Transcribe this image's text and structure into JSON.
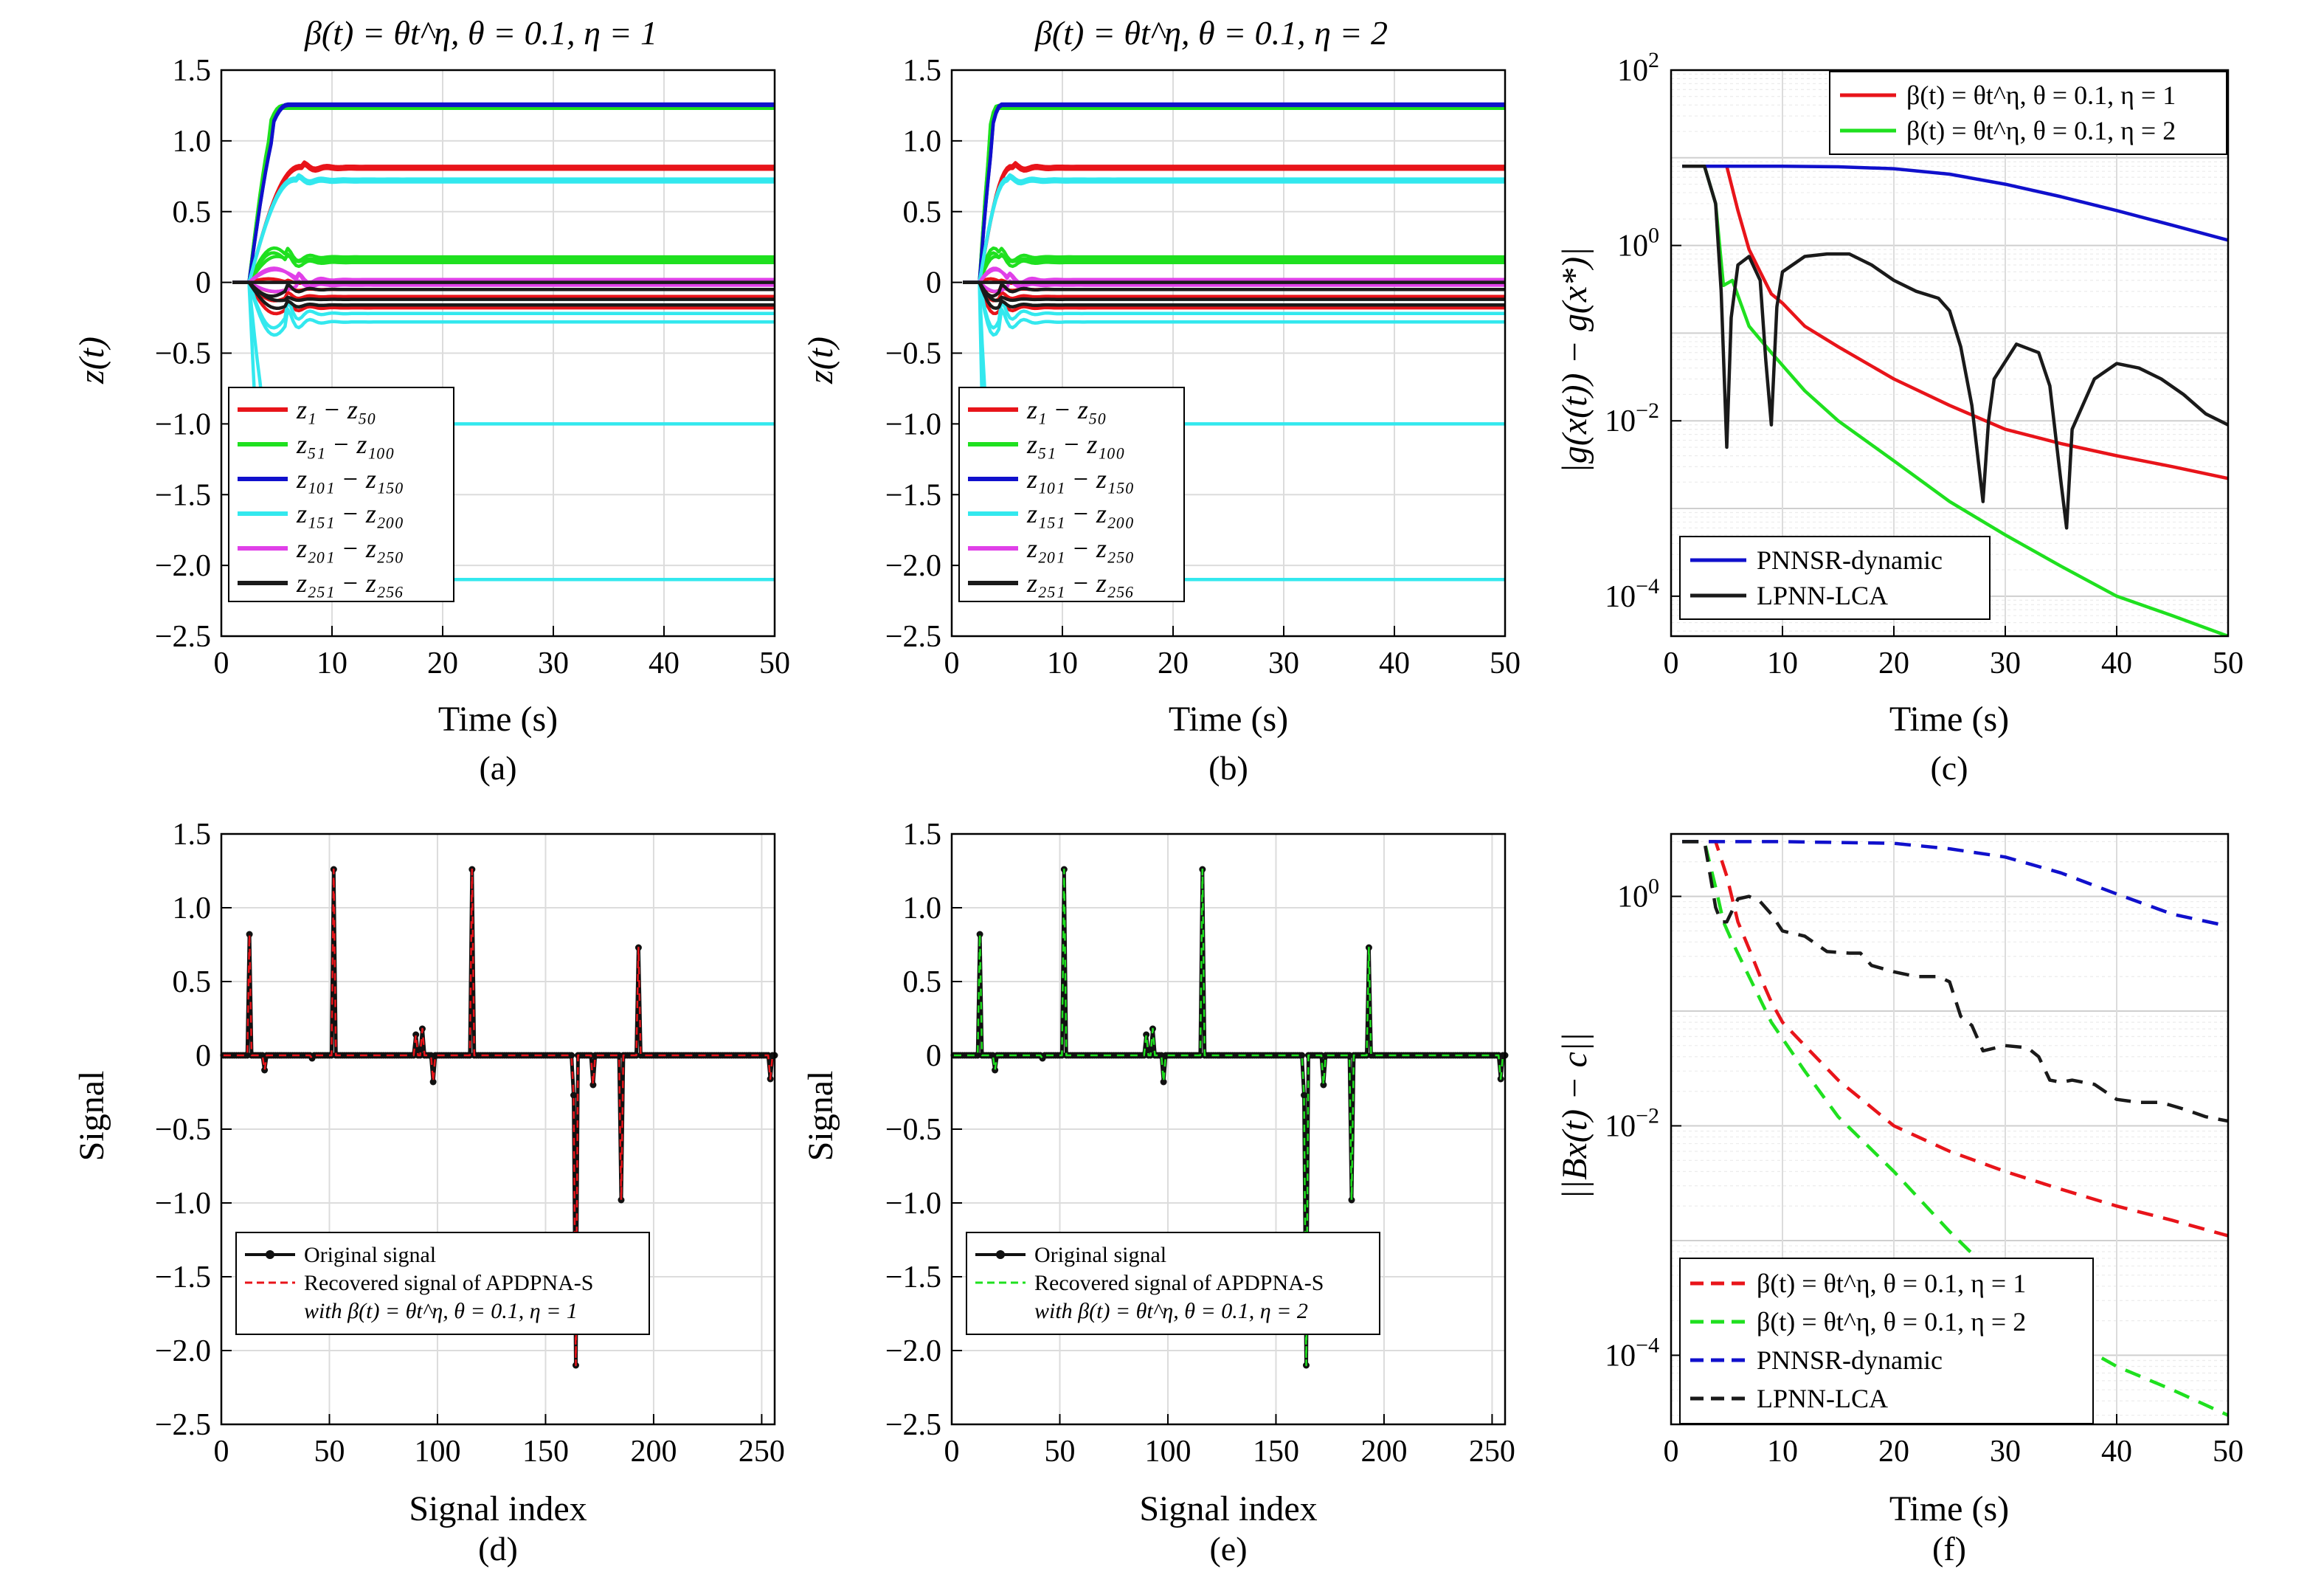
{
  "colors": {
    "red": "#e8141a",
    "green": "#1fe01f",
    "blue": "#1010cc",
    "cyan": "#33e8ee",
    "magenta": "#e040e8",
    "black": "#1a1a1a",
    "grid": "#dcdcdc"
  },
  "chart_data": [
    {
      "panel": "a",
      "caption": "(a)",
      "type": "line",
      "title": "β(t) = θt^η, θ = 0.1, η = 1",
      "xlabel": "Time (s)",
      "ylabel": "z(t)",
      "xlim": [
        0,
        50
      ],
      "ylim": [
        -2.5,
        1.5
      ],
      "xticks": [
        0,
        10,
        20,
        30,
        40,
        50
      ],
      "yticks": [
        1.5,
        1.0,
        0.5,
        0,
        -0.5,
        -1.0,
        -1.5,
        -2.0,
        -2.5
      ],
      "ytick_labels": [
        "1.5",
        "1.0",
        "0.5",
        "0",
        "−0.5",
        "−1.0",
        "−1.5",
        "−2.0",
        "−2.5"
      ],
      "grid": true,
      "legend_position": "bottom-left",
      "legend": [
        "z₁ − z₅₀",
        "z₅₁ − z₁₀₀",
        "z₁₀₁ − z₁₅₀",
        "z₁₅₁ − z₂₀₀",
        "z₂₀₁ − z₂₅₀",
        "z₂₅₁ − z₂₅₆"
      ],
      "final_values": {
        "z1-z50": [
          0.82,
          -0.1,
          -0.18
        ],
        "z51-z100": [
          1.25,
          0.18,
          0.14
        ],
        "z101-z150": [
          1.26
        ],
        "z151-z200": [
          0.73,
          -0.22,
          -0.28,
          -1.0,
          -2.1
        ],
        "z201-z250": [
          0.0,
          0.02
        ],
        "z251-z256": [
          0.0,
          -0.05,
          -0.16
        ]
      }
    },
    {
      "panel": "b",
      "caption": "(b)",
      "type": "line",
      "title": "β(t) = θt^η, θ = 0.1, η = 2",
      "xlabel": "Time (s)",
      "ylabel": "z(t)",
      "xlim": [
        0,
        50
      ],
      "ylim": [
        -2.5,
        1.5
      ],
      "xticks": [
        0,
        10,
        20,
        30,
        40,
        50
      ],
      "yticks": [
        1.5,
        1.0,
        0.5,
        0,
        -0.5,
        -1.0,
        -1.5,
        -2.0,
        -2.5
      ],
      "ytick_labels": [
        "1.5",
        "1.0",
        "0.5",
        "0",
        "−0.5",
        "−1.0",
        "−1.5",
        "−2.0",
        "−2.5"
      ],
      "grid": true,
      "legend_position": "bottom-left",
      "legend": [
        "z₁ − z₅₀",
        "z₅₁ − z₁₀₀",
        "z₁₀₁ − z₁₅₀",
        "z₁₅₁ − z₂₀₀",
        "z₂₀₁ − z₂₅₀",
        "z₂₅₁ − z₂₅₆"
      ]
    },
    {
      "panel": "c",
      "caption": "(c)",
      "type": "line",
      "yscale": "log",
      "xlabel": "Time (s)",
      "ylabel": "|g(x(t)) − g(x*)|",
      "xlim": [
        0,
        50
      ],
      "ylim": [
        3.5e-05,
        100
      ],
      "xticks": [
        0,
        10,
        20,
        30,
        40,
        50
      ],
      "yticks_exp": [
        2,
        0,
        -2,
        -4
      ],
      "grid": true,
      "legend_top": [
        "β(t) = θt^η, θ = 0.1, η = 1",
        "β(t) = θt^η, θ = 0.1, η = 2"
      ],
      "legend_bottom": [
        "PNNSR-dynamic",
        "LPNN-LCA"
      ],
      "series": [
        {
          "name": "β(t) = θt^η, θ = 0.1, η = 1",
          "color": "red",
          "style": "solid",
          "x": [
            1,
            5,
            6,
            7,
            8,
            9,
            10,
            12,
            15,
            20,
            25,
            30,
            35,
            40,
            45,
            50
          ],
          "y": [
            8,
            8,
            2.5,
            0.9,
            0.5,
            0.28,
            0.22,
            0.12,
            0.07,
            0.03,
            0.015,
            0.008,
            0.0055,
            0.004,
            0.003,
            0.0022
          ]
        },
        {
          "name": "β(t) = θt^η, θ = 0.1, η = 2",
          "color": "green",
          "style": "solid",
          "x": [
            1,
            3,
            4,
            4.7,
            5.5,
            7,
            9,
            12,
            15,
            20,
            25,
            30,
            35,
            40,
            45,
            50
          ],
          "y": [
            8,
            8,
            3,
            0.35,
            0.4,
            0.12,
            0.06,
            0.022,
            0.01,
            0.0035,
            0.0012,
            0.0005,
            0.00022,
            0.0001,
            6e-05,
            3.5e-05
          ]
        },
        {
          "name": "PNNSR-dynamic",
          "color": "blue",
          "style": "solid",
          "x": [
            1,
            10,
            15,
            20,
            25,
            30,
            35,
            40,
            45,
            50
          ],
          "y": [
            8,
            8,
            7.9,
            7.5,
            6.5,
            5,
            3.6,
            2.5,
            1.7,
            1.15
          ]
        },
        {
          "name": "LPNN-LCA",
          "color": "black",
          "style": "solid",
          "x": [
            1,
            3,
            4,
            4.5,
            5,
            5.4,
            6,
            7,
            8,
            8.5,
            9,
            9.5,
            10,
            12,
            14,
            16,
            18,
            20,
            22,
            24,
            25,
            26,
            27,
            28,
            28.5,
            29,
            31,
            33,
            34,
            35,
            35.5,
            36,
            38,
            40,
            42,
            44,
            46,
            48,
            50
          ],
          "y": [
            8,
            8,
            3,
            0.3,
            0.005,
            0.15,
            0.6,
            0.75,
            0.4,
            0.05,
            0.009,
            0.2,
            0.5,
            0.75,
            0.8,
            0.8,
            0.6,
            0.4,
            0.3,
            0.25,
            0.18,
            0.07,
            0.015,
            0.0012,
            0.01,
            0.03,
            0.075,
            0.06,
            0.025,
            0.002,
            0.0006,
            0.008,
            0.03,
            0.045,
            0.04,
            0.03,
            0.02,
            0.012,
            0.009
          ]
        }
      ]
    },
    {
      "panel": "d",
      "caption": "(d)",
      "type": "line",
      "xlabel": "Signal index",
      "ylabel": "Signal",
      "xlim": [
        0,
        256
      ],
      "ylim": [
        -2.5,
        1.5
      ],
      "xticks": [
        0,
        50,
        100,
        150,
        200,
        250
      ],
      "yticks": [
        1.5,
        1.0,
        0.5,
        0,
        -0.5,
        -1.0,
        -1.5,
        -2.0,
        -2.5
      ],
      "ytick_labels": [
        "1.5",
        "1.0",
        "0.5",
        "0",
        "−0.5",
        "−1.0",
        "−1.5",
        "−2.0",
        "−2.5"
      ],
      "grid": true,
      "legend": [
        "Original signal",
        "Recovered signal of APDPNA-S",
        "with β(t) = θt^η, θ = 0.1, η = 1"
      ],
      "spikes": [
        [
          13,
          0.82
        ],
        [
          20,
          -0.1
        ],
        [
          42,
          -0.02
        ],
        [
          52,
          1.26
        ],
        [
          90,
          0.14
        ],
        [
          93,
          0.18
        ],
        [
          98,
          -0.18
        ],
        [
          116,
          1.26
        ],
        [
          163,
          -0.27
        ],
        [
          164,
          -2.1
        ],
        [
          172,
          -0.2
        ],
        [
          185,
          -0.98
        ],
        [
          193,
          0.73
        ],
        [
          254,
          -0.16
        ]
      ]
    },
    {
      "panel": "e",
      "caption": "(e)",
      "type": "line",
      "xlabel": "Signal index",
      "ylabel": "Signal",
      "xlim": [
        0,
        256
      ],
      "ylim": [
        -2.5,
        1.5
      ],
      "xticks": [
        0,
        50,
        100,
        150,
        200,
        250
      ],
      "yticks": [
        1.5,
        1.0,
        0.5,
        0,
        -0.5,
        -1.0,
        -1.5,
        -2.0,
        -2.5
      ],
      "ytick_labels": [
        "1.5",
        "1.0",
        "0.5",
        "0",
        "−0.5",
        "−1.0",
        "−1.5",
        "−2.0",
        "−2.5"
      ],
      "grid": true,
      "legend": [
        "Original signal",
        "Recovered signal of APDPNA-S",
        "with β(t) = θt^η, θ = 0.1, η = 2"
      ],
      "spikes": [
        [
          13,
          0.82
        ],
        [
          20,
          -0.1
        ],
        [
          42,
          -0.02
        ],
        [
          52,
          1.26
        ],
        [
          90,
          0.14
        ],
        [
          93,
          0.18
        ],
        [
          98,
          -0.18
        ],
        [
          116,
          1.26
        ],
        [
          163,
          -0.27
        ],
        [
          164,
          -2.1
        ],
        [
          172,
          -0.2
        ],
        [
          185,
          -0.98
        ],
        [
          193,
          0.73
        ],
        [
          254,
          -0.16
        ]
      ]
    },
    {
      "panel": "f",
      "caption": "(f)",
      "type": "line",
      "yscale": "log",
      "xlabel": "Time (s)",
      "ylabel": "||Bx(t) − c||",
      "xlim": [
        0,
        50
      ],
      "ylim": [
        2.5e-05,
        3.5
      ],
      "xticks": [
        0,
        10,
        20,
        30,
        40,
        50
      ],
      "yticks_exp": [
        0,
        -2,
        -4
      ],
      "grid": true,
      "legend": [
        "β(t) = θt^η, θ = 0.1, η = 1",
        "β(t) = θt^η, θ = 0.1, η = 2",
        "PNNSR-dynamic",
        "LPNN-LCA"
      ],
      "series": [
        {
          "name": "β(t) = θt^η, θ = 0.1, η = 1",
          "color": "red",
          "style": "dashed",
          "x": [
            1,
            4,
            5,
            6,
            7,
            8,
            9,
            10,
            12,
            15,
            20,
            25,
            30,
            35,
            40,
            45,
            50
          ],
          "y": [
            3,
            3,
            1.5,
            0.6,
            0.35,
            0.2,
            0.12,
            0.08,
            0.05,
            0.025,
            0.01,
            0.006,
            0.004,
            0.0028,
            0.002,
            0.0015,
            0.0011
          ]
        },
        {
          "name": "β(t) = θt^η, θ = 0.1, η = 2",
          "color": "green",
          "style": "dashed",
          "x": [
            1,
            3,
            4,
            4.7,
            5.5,
            7,
            9,
            12,
            15,
            20,
            25,
            30,
            35,
            40,
            45,
            50
          ],
          "y": [
            3,
            3,
            1.2,
            0.6,
            0.4,
            0.2,
            0.08,
            0.03,
            0.012,
            0.004,
            0.0012,
            0.0004,
            0.00015,
            8e-05,
            5e-05,
            3e-05
          ]
        },
        {
          "name": "PNNSR-dynamic",
          "color": "blue",
          "style": "dashed",
          "x": [
            1,
            10,
            20,
            25,
            30,
            35,
            40,
            45,
            50
          ],
          "y": [
            3,
            3,
            2.9,
            2.6,
            2.2,
            1.6,
            1.05,
            0.7,
            0.55
          ]
        },
        {
          "name": "LPNN-LCA",
          "color": "black",
          "style": "dashed",
          "x": [
            1,
            3,
            4,
            4.5,
            5,
            6,
            7,
            8,
            9,
            10,
            12,
            14,
            16,
            17,
            18,
            20,
            22,
            24,
            25,
            26,
            27,
            28,
            30,
            32,
            33,
            34,
            35,
            36,
            38,
            40,
            42,
            44,
            46,
            48,
            50
          ],
          "y": [
            3,
            3,
            0.8,
            0.6,
            0.6,
            0.95,
            1.0,
            0.9,
            0.7,
            0.5,
            0.45,
            0.33,
            0.32,
            0.32,
            0.25,
            0.22,
            0.2,
            0.2,
            0.18,
            0.09,
            0.075,
            0.045,
            0.05,
            0.048,
            0.04,
            0.025,
            0.024,
            0.025,
            0.023,
            0.017,
            0.016,
            0.016,
            0.014,
            0.012,
            0.011
          ]
        }
      ]
    }
  ]
}
